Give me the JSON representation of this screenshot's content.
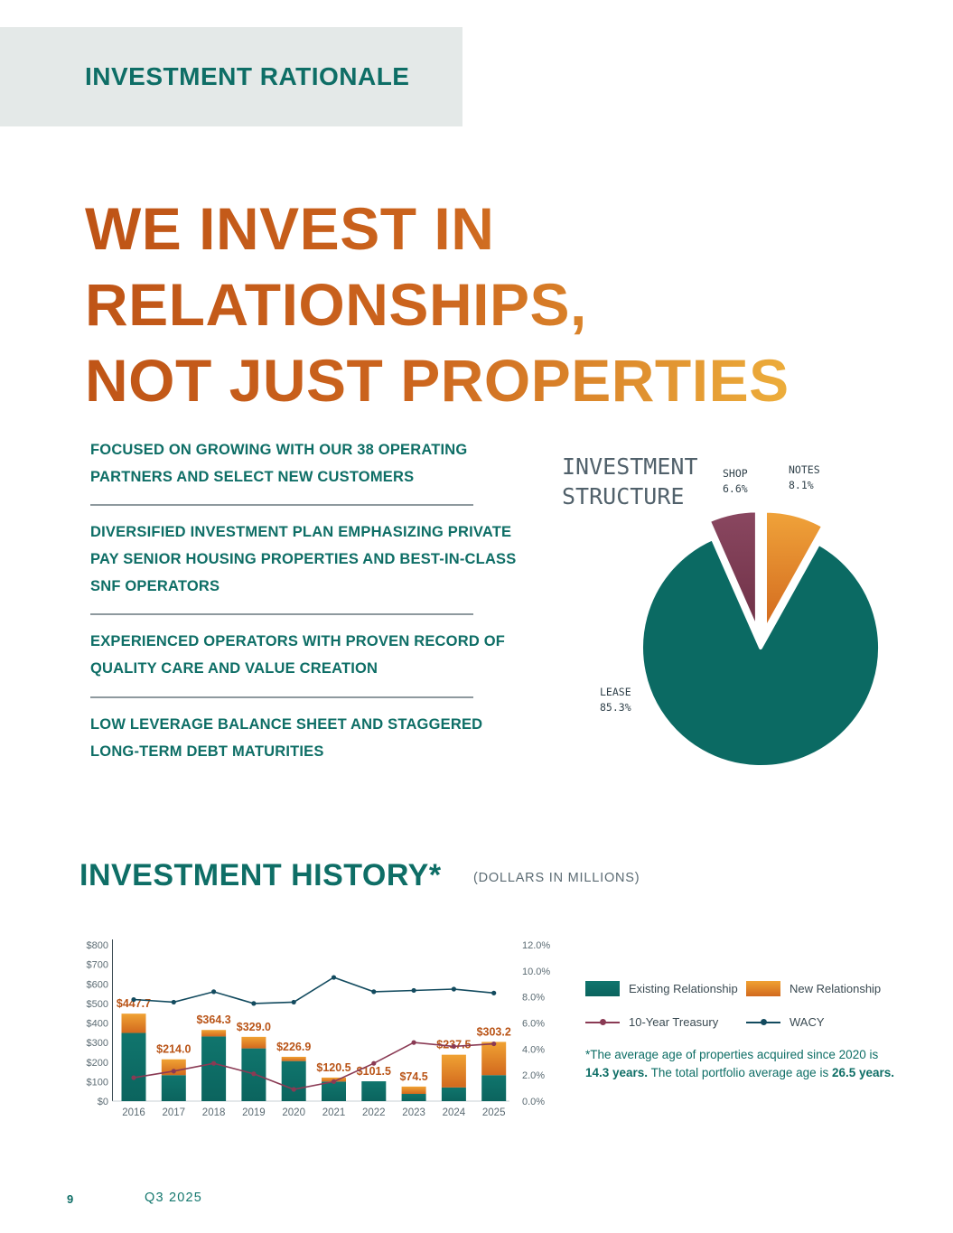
{
  "banner": {
    "title": "INVESTMENT RATIONALE"
  },
  "hero": {
    "line1": "WE INVEST IN",
    "line2": "RELATIONSHIPS,",
    "line3": "NOT JUST PROPERTIES"
  },
  "bullets": [
    "FOCUSED ON GROWING WITH OUR 38 OPERATING PARTNERS AND SELECT NEW CUSTOMERS",
    "DIVERSIFIED INVESTMENT PLAN EMPHASIZING PRIVATE PAY SENIOR HOUSING PROPERTIES AND BEST-IN-CLASS SNF OPERATORS",
    "EXPERIENCED OPERATORS WITH PROVEN RECORD OF QUALITY CARE AND VALUE CREATION",
    "LOW LEVERAGE BALANCE SHEET AND STAGGERED LONG-TERM DEBT MATURITIES"
  ],
  "pie_section": {
    "title_line1": "INVESTMENT",
    "title_line2": "STRUCTURE",
    "labels": {
      "shop": {
        "name": "SHOP",
        "value": "6.6%"
      },
      "notes": {
        "name": "NOTES",
        "value": "8.1%"
      },
      "lease": {
        "name": "LEASE",
        "value": "85.3%"
      }
    }
  },
  "history": {
    "title": "INVESTMENT HISTORY*",
    "subtitle": "(DOLLARS IN MILLIONS)",
    "legend": [
      {
        "label": "Existing Relationship",
        "marker": "bar",
        "color": "#0B645E",
        "color2": "#10756D"
      },
      {
        "label": "New Relationship",
        "marker": "bar",
        "color": "#D2691E",
        "color2": "#F0A233"
      },
      {
        "label": "10-Year Treasury",
        "marker": "line",
        "color": "#8A3A54"
      },
      {
        "label": "WACY",
        "marker": "line",
        "color": "#134B5F"
      }
    ],
    "footnote": {
      "text1": "*The average age of properties acquired since 2020 is ",
      "bold1": "14.3 years.",
      "text2": "  The total portfolio average age is ",
      "bold2": "26.5 years."
    }
  },
  "footer": {
    "page_number": "9",
    "period": "Q3 2025"
  },
  "colors": {
    "teal": "#0E6E66",
    "orange": "#E8882B",
    "maroon": "#7C3A51",
    "gold": "#EFB23D",
    "heading_gradient_start": "#BE5316",
    "heading_gradient_end": "#EFB23D",
    "banner_bg": "#E4E9E8",
    "total_label": "#B95417",
    "axis_label": "#5B6B73"
  },
  "chart_data": [
    {
      "type": "pie",
      "title": "INVESTMENT STRUCTURE",
      "start_angle": "top, clockwise",
      "slices": [
        {
          "label": "NOTES",
          "value": 8.1,
          "color": "#D2691E",
          "color2": "#F0A33A",
          "exploded": true
        },
        {
          "label": "LEASE",
          "value": 85.3,
          "color": "#0B6A63",
          "exploded": false
        },
        {
          "label": "SHOP",
          "value": 6.6,
          "color": "#6F3147",
          "color2": "#8A4760",
          "exploded": true
        }
      ]
    },
    {
      "type": "bar",
      "title": "INVESTMENT HISTORY*",
      "subtitle": "(DOLLARS IN MILLIONS)",
      "categories": [
        "2016",
        "2017",
        "2018",
        "2019",
        "2020",
        "2021",
        "2022",
        "2023",
        "2024",
        "2025"
      ],
      "series": [
        {
          "name": "Existing Relationship",
          "type": "bar",
          "axis": "left",
          "color": "#0B645E",
          "color2": "#10756D",
          "values": [
            349,
            133,
            331,
            270,
            205,
            100,
            101.5,
            37,
            70,
            133
          ]
        },
        {
          "name": "New Relationship",
          "type": "bar",
          "axis": "left",
          "color": "#D2691E",
          "color2": "#F0A233",
          "values": [
            98.7,
            81,
            33.3,
            59,
            21.9,
            20.5,
            0,
            37.5,
            167.5,
            170.2
          ]
        },
        {
          "name": "10-Year Treasury",
          "type": "line",
          "axis": "right",
          "color": "#8A3A54",
          "values": [
            1.8,
            2.3,
            2.9,
            2.1,
            0.9,
            1.5,
            2.9,
            4.5,
            4.2,
            4.4
          ]
        },
        {
          "name": "WACY",
          "type": "line",
          "axis": "right",
          "color": "#134B5F",
          "values": [
            7.8,
            7.6,
            8.4,
            7.5,
            7.6,
            9.5,
            8.4,
            8.5,
            8.6,
            8.3
          ]
        }
      ],
      "totals": [
        "$447.7",
        "$214.0",
        "$364.3",
        "$329.0",
        "$226.9",
        "$120.5",
        "$101.5",
        "$74.5",
        "$237.5",
        "$303.2"
      ],
      "left_axis": {
        "min": 0,
        "max": 800,
        "step": 100,
        "format": "$"
      },
      "right_axis": {
        "min": 0,
        "max": 12,
        "step": 2,
        "format": "%"
      },
      "grid": false,
      "legend_position": "right"
    }
  ]
}
